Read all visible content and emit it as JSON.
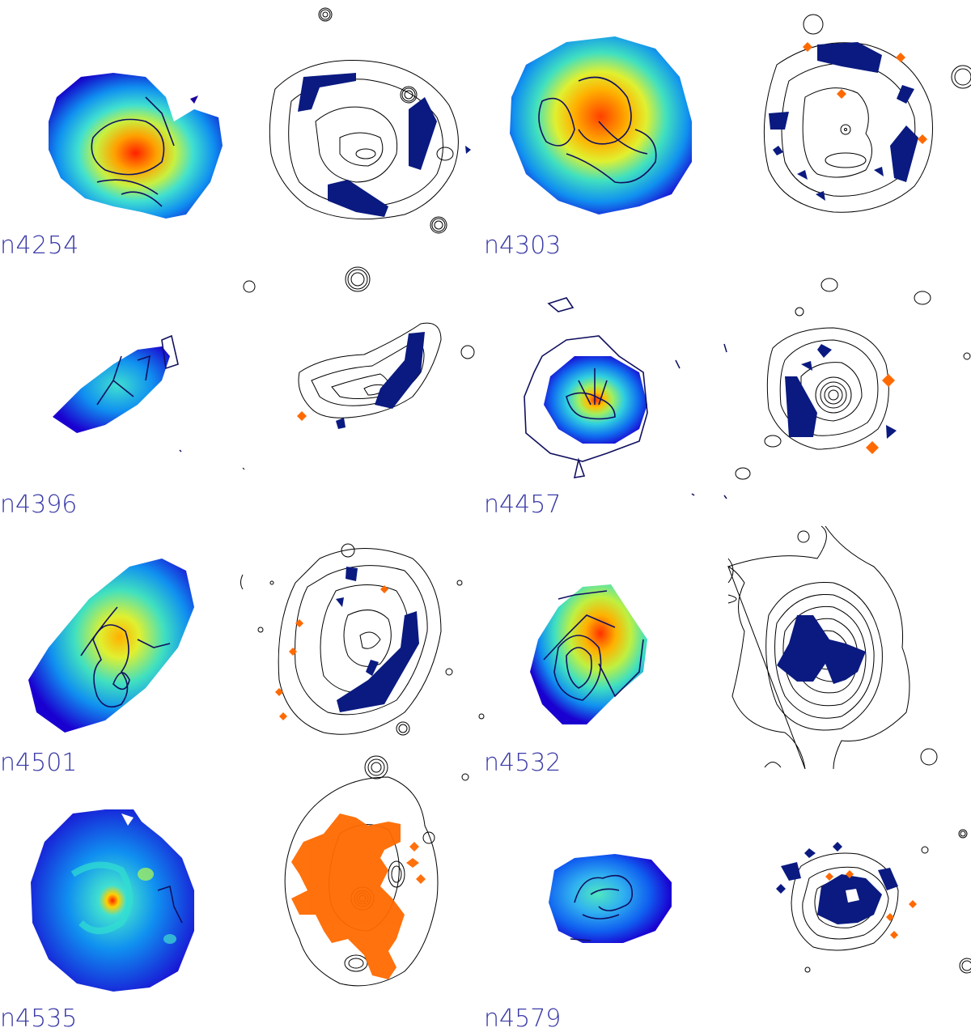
{
  "galaxies": [
    {
      "label": "n4254"
    },
    {
      "label": "n4303"
    },
    {
      "label": "n4396"
    },
    {
      "label": "n4457"
    },
    {
      "label": "n4501"
    },
    {
      "label": "n4532"
    },
    {
      "label": "n4535"
    },
    {
      "label": "n4579"
    }
  ],
  "colors": {
    "label": "#3a3aa8",
    "contour": "#000000",
    "blue_region": "#0a1a80",
    "orange_region": "#ff6a00",
    "map_low": "#1a00d0",
    "map_mid": "#40e0d0",
    "map_high": "#ff2000"
  }
}
